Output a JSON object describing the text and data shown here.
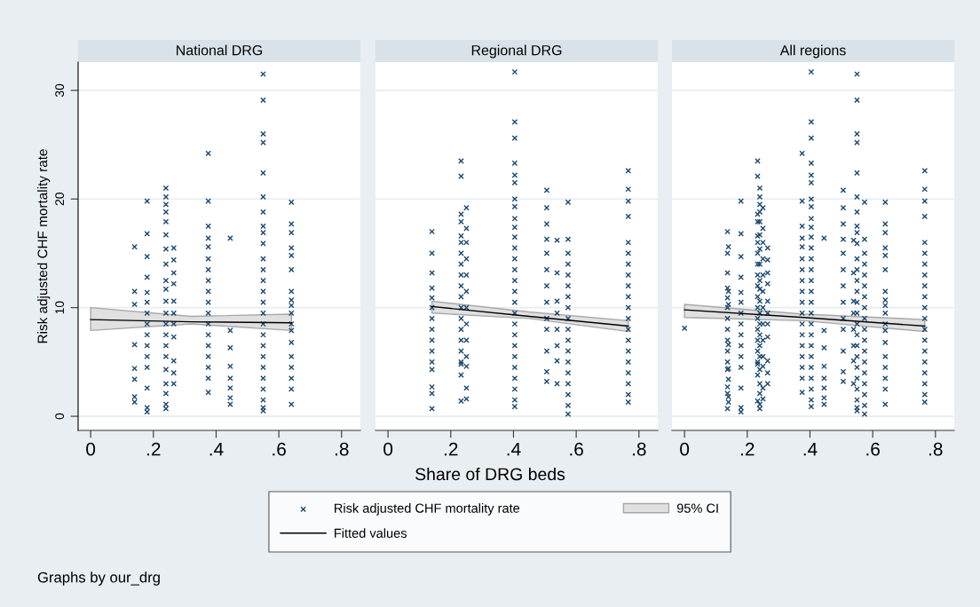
{
  "chart_data": [
    {
      "type": "scatter",
      "title": "National DRG",
      "ylabel": "Risk adjusted CHF mortality rate",
      "xlim": [
        -0.04,
        0.86
      ],
      "xticks": [
        0,
        {
          "value": 0.2,
          "label": ".2"
        },
        {
          "value": 0.4,
          "label": ".4"
        },
        {
          "value": 0.6,
          "label": ".6"
        },
        {
          "value": 0.8,
          "label": ".8"
        }
      ],
      "ylim": [
        -1.3,
        32.6
      ],
      "yticks": [
        0,
        10,
        20,
        30
      ],
      "grid": "y",
      "marker": "cross",
      "annotations": [
        "Graphs by our_drg"
      ],
      "series": [
        {
          "type": "area",
          "color": "#e0e0e0"
        },
        {
          "color": "#1a476f",
          "x": [
            0.14,
            0.14,
            0.14,
            0.14,
            0.14,
            0.14,
            0.14,
            0.14,
            0.18,
            0.18,
            0.18,
            0.18,
            0.18,
            0.18,
            0.18,
            0.18,
            0.18,
            0.18,
            0.18,
            0.18,
            0.18,
            0.18,
            0.18,
            0.24,
            0.24,
            0.24,
            0.24,
            0.24,
            0.24,
            0.24,
            0.24,
            0.24,
            0.24,
            0.24,
            0.24,
            0.24,
            0.24,
            0.24,
            0.24,
            0.24,
            0.24,
            0.24,
            0.24,
            0.24,
            0.265,
            0.265,
            0.265,
            0.265,
            0.265,
            0.265,
            0.265,
            0.265,
            0.265,
            0.265,
            0.265,
            0.375,
            0.375,
            0.375,
            0.375,
            0.375,
            0.375,
            0.375,
            0.375,
            0.375,
            0.375,
            0.375,
            0.375,
            0.375,
            0.375,
            0.375,
            0.375,
            0.375,
            0.375,
            0.445,
            0.445,
            0.445,
            0.445,
            0.445,
            0.445,
            0.445,
            0.445,
            0.55,
            0.55,
            0.55,
            0.55,
            0.55,
            0.55,
            0.55,
            0.55,
            0.55,
            0.55,
            0.55,
            0.55,
            0.55,
            0.55,
            0.55,
            0.55,
            0.55,
            0.55,
            0.55,
            0.55,
            0.55,
            0.55,
            0.55,
            0.55,
            0.55,
            0.55,
            0.64,
            0.64,
            0.64,
            0.64,
            0.64,
            0.64,
            0.64,
            0.64,
            0.64,
            0.64,
            0.64,
            0.64,
            0.64,
            0.64,
            0.64,
            0.64,
            0.64,
            0.64
          ],
          "values": [
            15.6,
            11.5,
            10.3,
            6.6,
            4.4,
            3.4,
            1.8,
            1.3,
            19.8,
            16.8,
            14.7,
            12.8,
            11.4,
            10.5,
            9.5,
            8.5,
            7.5,
            6.5,
            5.5,
            4.5,
            2.6,
            0.8,
            0.4,
            21,
            20.2,
            19.5,
            18.8,
            17.9,
            16.7,
            15.4,
            14,
            12.5,
            11.7,
            10.6,
            9.5,
            8.5,
            7.5,
            6.5,
            5.5,
            4.3,
            3,
            2.1,
            1.1,
            0.7,
            15.5,
            14.4,
            13.2,
            12.2,
            10.6,
            9.5,
            8.5,
            7.3,
            5.1,
            4,
            3,
            24.2,
            19.8,
            17.5,
            16.4,
            15.6,
            14.5,
            13.5,
            12.5,
            11.5,
            10.5,
            9.5,
            8.5,
            7.5,
            6.5,
            5.5,
            4.5,
            3.5,
            2.2,
            16.4,
            7.9,
            6.3,
            4.6,
            3.5,
            2.6,
            1.7,
            1.1,
            31.5,
            29.1,
            26,
            25.2,
            22.4,
            20.2,
            18.8,
            17.5,
            16.9,
            15.9,
            14.5,
            13.5,
            12.5,
            11.5,
            10.5,
            9.5,
            8.5,
            7.5,
            6.5,
            5.5,
            4.5,
            3.5,
            2.5,
            1.5,
            0.8,
            0.5,
            19.7,
            17.7,
            16.9,
            15.5,
            14.8,
            13.5,
            11.5,
            10.7,
            10.2,
            9.5,
            8.5,
            7.9,
            6.8,
            5.5,
            4.5,
            3.5,
            2.5,
            1.1
          ]
        },
        {
          "type": "line",
          "color": "#000000",
          "marker": "none",
          "x": [
            0,
            0.32,
            0.64
          ],
          "values": [
            8.9,
            8.7,
            8.6
          ],
          "lower": [
            7.9,
            8.5,
            7.9
          ],
          "upper": [
            10.0,
            9.2,
            9.4
          ]
        }
      ]
    },
    {
      "type": "scatter",
      "title": "Regional DRG",
      "xlabel": "Share of DRG beds",
      "xlim": [
        -0.04,
        0.86
      ],
      "xticks": [
        0,
        {
          "value": 0.2,
          "label": ".2"
        },
        {
          "value": 0.4,
          "label": ".4"
        },
        {
          "value": 0.6,
          "label": ".6"
        },
        {
          "value": 0.8,
          "label": ".8"
        }
      ],
      "ylim": [
        -1.3,
        32.6
      ],
      "yticks": [
        0,
        10,
        20,
        30
      ],
      "tick_labels": "x",
      "grid": "y",
      "legend": "bottom",
      "marker": "cross",
      "series": [
        {
          "type": "area",
          "name": "95% CI",
          "color": "#e0e0e0"
        },
        {
          "name": "Risk adjusted CHF mortality rate",
          "color": "#1a476f",
          "x": [
            0.14,
            0.14,
            0.14,
            0.14,
            0.14,
            0.14,
            0.14,
            0.14,
            0.14,
            0.14,
            0.14,
            0.14,
            0.14,
            0.14,
            0.14,
            0.233,
            0.233,
            0.233,
            0.233,
            0.233,
            0.233,
            0.233,
            0.233,
            0.233,
            0.233,
            0.233,
            0.233,
            0.233,
            0.233,
            0.233,
            0.233,
            0.233,
            0.233,
            0.233,
            0.233,
            0.25,
            0.25,
            0.25,
            0.25,
            0.25,
            0.25,
            0.25,
            0.25,
            0.25,
            0.25,
            0.25,
            0.25,
            0.25,
            0.404,
            0.404,
            0.404,
            0.404,
            0.404,
            0.404,
            0.404,
            0.404,
            0.404,
            0.404,
            0.404,
            0.404,
            0.404,
            0.404,
            0.404,
            0.404,
            0.404,
            0.404,
            0.404,
            0.404,
            0.404,
            0.404,
            0.404,
            0.404,
            0.404,
            0.404,
            0.404,
            0.506,
            0.506,
            0.506,
            0.506,
            0.506,
            0.506,
            0.506,
            0.506,
            0.506,
            0.506,
            0.506,
            0.506,
            0.506,
            0.539,
            0.539,
            0.539,
            0.539,
            0.539,
            0.539,
            0.539,
            0.539,
            0.574,
            0.574,
            0.574,
            0.574,
            0.574,
            0.574,
            0.574,
            0.574,
            0.574,
            0.574,
            0.574,
            0.574,
            0.574,
            0.574,
            0.574,
            0.574,
            0.574,
            0.574,
            0.766,
            0.766,
            0.766,
            0.766,
            0.766,
            0.766,
            0.766,
            0.766,
            0.766,
            0.766,
            0.766,
            0.766,
            0.766,
            0.766,
            0.766,
            0.766,
            0.766,
            0.766,
            0.766,
            0.766
          ],
          "values": [
            17,
            15,
            13.2,
            11.8,
            10.9,
            10,
            9,
            8,
            7,
            6,
            5,
            4.3,
            2.7,
            2.1,
            0.7,
            23.5,
            22.1,
            18.6,
            17.9,
            16.6,
            16,
            15,
            14,
            13,
            12,
            11,
            10,
            9,
            8,
            7,
            6,
            5,
            4.8,
            3.8,
            1.4,
            19.2,
            17.3,
            16,
            14.5,
            13,
            11.5,
            10,
            8.5,
            7,
            5.5,
            4.6,
            2.6,
            1.6,
            31.7,
            27.1,
            25.6,
            23.3,
            22.2,
            21.5,
            20,
            19.3,
            18.2,
            17.4,
            16.5,
            15.5,
            14.5,
            13.5,
            12.5,
            11.5,
            10.5,
            9.5,
            8.5,
            7.5,
            6.5,
            5.5,
            4.5,
            3.5,
            2.5,
            1.5,
            0.9,
            20.8,
            19.2,
            17.7,
            16.3,
            15,
            13.5,
            12,
            10.5,
            9,
            8,
            6,
            4.1,
            3.2,
            16.2,
            13.2,
            10.6,
            9.5,
            8,
            6.5,
            5.1,
            3,
            19.7,
            16.3,
            15,
            14,
            13,
            12,
            11,
            10,
            9,
            8,
            7,
            6,
            5,
            4,
            3,
            2,
            1,
            0.2,
            22.6,
            20.9,
            19.8,
            18.4,
            16,
            15,
            14,
            13,
            12,
            11,
            10,
            9,
            8,
            7,
            6,
            5,
            4,
            3,
            2,
            1.3
          ]
        },
        {
          "type": "line",
          "name": "Fitted values",
          "color": "#000000",
          "marker": "none",
          "x": [
            0.14,
            0.45,
            0.766
          ],
          "values": [
            10.1,
            9.2,
            8.3
          ],
          "lower": [
            9.5,
            9.0,
            7.8
          ],
          "upper": [
            10.6,
            9.6,
            8.8
          ]
        }
      ]
    },
    {
      "type": "scatter",
      "title": "All regions",
      "xlim": [
        -0.04,
        0.86
      ],
      "xticks": [
        0,
        {
          "value": 0.2,
          "label": ".2"
        },
        {
          "value": 0.4,
          "label": ".4"
        },
        {
          "value": 0.6,
          "label": ".6"
        },
        {
          "value": 0.8,
          "label": ".8"
        }
      ],
      "ylim": [
        -1.3,
        32.6
      ],
      "yticks": [
        0,
        10,
        20,
        30
      ],
      "tick_labels": "x",
      "grid": "y",
      "marker": "cross",
      "series": [
        {
          "type": "area",
          "color": "#e0e0e0"
        },
        {
          "color": "#1a476f",
          "x": [
            0,
            0.14,
            0.14,
            0.14,
            0.14,
            0.14,
            0.14,
            0.14,
            0.14,
            0.18,
            0.18,
            0.18,
            0.18,
            0.18,
            0.18,
            0.18,
            0.18,
            0.18,
            0.18,
            0.18,
            0.18,
            0.18,
            0.18,
            0.18,
            0.24,
            0.24,
            0.24,
            0.24,
            0.24,
            0.24,
            0.24,
            0.24,
            0.24,
            0.24,
            0.24,
            0.24,
            0.24,
            0.24,
            0.24,
            0.24,
            0.24,
            0.24,
            0.24,
            0.24,
            0.24,
            0.265,
            0.265,
            0.265,
            0.265,
            0.265,
            0.265,
            0.265,
            0.265,
            0.265,
            0.265,
            0.265,
            0.375,
            0.375,
            0.375,
            0.375,
            0.375,
            0.375,
            0.375,
            0.375,
            0.375,
            0.375,
            0.375,
            0.375,
            0.375,
            0.375,
            0.375,
            0.375,
            0.375,
            0.375,
            0.445,
            0.445,
            0.445,
            0.445,
            0.445,
            0.445,
            0.445,
            0.445,
            0.55,
            0.55,
            0.55,
            0.55,
            0.55,
            0.55,
            0.55,
            0.55,
            0.55,
            0.55,
            0.55,
            0.55,
            0.55,
            0.55,
            0.55,
            0.55,
            0.55,
            0.55,
            0.55,
            0.55,
            0.55,
            0.55,
            0.55,
            0.55,
            0.55,
            0.55,
            0.64,
            0.64,
            0.64,
            0.64,
            0.64,
            0.64,
            0.64,
            0.64,
            0.64,
            0.64,
            0.64,
            0.64,
            0.64,
            0.64,
            0.64,
            0.64,
            0.64,
            0.64,
            0.137,
            0.137,
            0.137,
            0.137,
            0.137,
            0.137,
            0.137,
            0.137,
            0.137,
            0.137,
            0.137,
            0.137,
            0.137,
            0.137,
            0.137,
            0.233,
            0.233,
            0.233,
            0.233,
            0.233,
            0.233,
            0.233,
            0.233,
            0.233,
            0.233,
            0.233,
            0.233,
            0.233,
            0.233,
            0.233,
            0.233,
            0.233,
            0.233,
            0.233,
            0.233,
            0.25,
            0.25,
            0.25,
            0.25,
            0.25,
            0.25,
            0.25,
            0.25,
            0.25,
            0.25,
            0.25,
            0.25,
            0.25,
            0.404,
            0.404,
            0.404,
            0.404,
            0.404,
            0.404,
            0.404,
            0.404,
            0.404,
            0.404,
            0.404,
            0.404,
            0.404,
            0.404,
            0.404,
            0.404,
            0.404,
            0.404,
            0.404,
            0.404,
            0.404,
            0.404,
            0.404,
            0.404,
            0.404,
            0.404,
            0.404,
            0.506,
            0.506,
            0.506,
            0.506,
            0.506,
            0.506,
            0.506,
            0.506,
            0.506,
            0.506,
            0.506,
            0.506,
            0.506,
            0.539,
            0.539,
            0.539,
            0.539,
            0.539,
            0.539,
            0.539,
            0.539,
            0.574,
            0.574,
            0.574,
            0.574,
            0.574,
            0.574,
            0.574,
            0.574,
            0.574,
            0.574,
            0.574,
            0.574,
            0.574,
            0.574,
            0.574,
            0.574,
            0.574,
            0.574,
            0.766,
            0.766,
            0.766,
            0.766,
            0.766,
            0.766,
            0.766,
            0.766,
            0.766,
            0.766,
            0.766,
            0.766,
            0.766,
            0.766,
            0.766,
            0.766,
            0.766,
            0.766,
            0.766,
            0.766
          ],
          "values": [
            8.1,
            15.6,
            11.5,
            10.3,
            6.6,
            4.4,
            3.4,
            1.8,
            1.3,
            19.8,
            16.8,
            14.7,
            12.8,
            11.4,
            10.5,
            9.5,
            8.5,
            7.5,
            6.5,
            5.5,
            4.5,
            2.6,
            0.8,
            0.4,
            21,
            20.2,
            19.5,
            18.8,
            17.9,
            16.7,
            15.4,
            14,
            12.5,
            11.7,
            10.6,
            9.5,
            8.5,
            7.5,
            6.5,
            5.5,
            4.3,
            3,
            2.1,
            1.1,
            0.7,
            15.5,
            14.4,
            13.2,
            12.2,
            10.6,
            9.5,
            8.5,
            7.3,
            5.1,
            4,
            3,
            24.2,
            19.8,
            17.5,
            16.4,
            15.6,
            14.5,
            13.5,
            12.5,
            11.5,
            10.5,
            9.5,
            8.5,
            7.5,
            6.5,
            5.5,
            4.5,
            3.5,
            2.2,
            16.4,
            7.9,
            6.3,
            4.6,
            3.5,
            2.6,
            1.7,
            1.1,
            31.5,
            29.1,
            26,
            25.2,
            22.4,
            20.2,
            18.8,
            17.5,
            16.9,
            15.9,
            14.5,
            13.5,
            12.5,
            11.5,
            10.5,
            9.5,
            8.5,
            7.5,
            6.5,
            5.5,
            4.5,
            3.5,
            2.5,
            1.5,
            0.8,
            0.5,
            19.7,
            17.7,
            16.9,
            15.5,
            14.8,
            13.5,
            11.5,
            10.7,
            10.2,
            9.5,
            8.5,
            7.9,
            6.8,
            5.5,
            4.5,
            3.5,
            2.5,
            1.1,
            17,
            15,
            13.2,
            11.8,
            10.9,
            10,
            9,
            8,
            7,
            6,
            5,
            4.3,
            2.7,
            2.1,
            0.7,
            23.5,
            22.1,
            18.6,
            17.9,
            16.6,
            16,
            15,
            14,
            13,
            12,
            11,
            10,
            9,
            8,
            7,
            6,
            5,
            4.8,
            3.8,
            1.4,
            19.2,
            17.3,
            16,
            14.5,
            13,
            11.5,
            10,
            8.5,
            7,
            5.5,
            4.6,
            2.6,
            1.6,
            31.7,
            27.1,
            25.6,
            23.3,
            22.2,
            21.5,
            20,
            19.3,
            18.2,
            17.4,
            16.5,
            15.5,
            14.5,
            13.5,
            12.5,
            11.5,
            10.5,
            9.5,
            8.5,
            7.5,
            6.5,
            5.5,
            4.5,
            3.5,
            2.5,
            1.5,
            0.9,
            20.8,
            19.2,
            17.7,
            16.3,
            15,
            13.5,
            12,
            10.5,
            9,
            8,
            6,
            4.1,
            3.2,
            16.2,
            13.2,
            10.6,
            9.5,
            8,
            6.5,
            5.1,
            3,
            19.7,
            16.3,
            15,
            14,
            13,
            12,
            11,
            10,
            9,
            8,
            7,
            6,
            5,
            4,
            3,
            2,
            1,
            0.2,
            22.6,
            20.9,
            19.8,
            18.4,
            16,
            15,
            14,
            13,
            12,
            11,
            10,
            9,
            8,
            7,
            6,
            5,
            4,
            3,
            2,
            1.3
          ]
        },
        {
          "type": "line",
          "color": "#000000",
          "marker": "none",
          "x": [
            0,
            0.38,
            0.766
          ],
          "values": [
            9.8,
            9.1,
            8.3
          ],
          "lower": [
            9.1,
            8.8,
            7.8
          ],
          "upper": [
            10.3,
            9.4,
            8.9
          ]
        }
      ]
    }
  ]
}
